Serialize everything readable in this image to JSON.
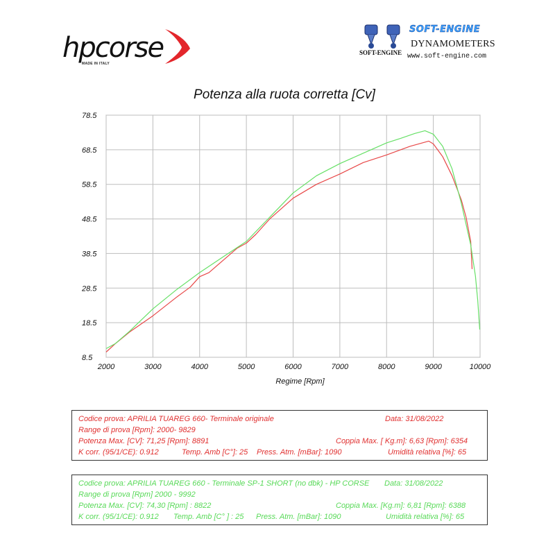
{
  "header": {
    "hpcorse_logo": "hpcorse",
    "hpcorse_made_in": "MADE IN ITALY",
    "softengine_title": "SOFT-ENGINE",
    "softengine_subtitle": "DYNAMOMETERS",
    "softengine_url": "www.soft-engine.com",
    "softengine_mini": "SOFT-ENGINE"
  },
  "chart_data": {
    "type": "line",
    "title": "Potenza alla ruota corretta [Cv]",
    "xlabel": "Regime [Rpm]",
    "ylabel": "",
    "xlim": [
      2000,
      10000
    ],
    "ylim": [
      8.5,
      78.5
    ],
    "xticks": [
      "2000",
      "3000",
      "4000",
      "5000",
      "6000",
      "7000",
      "8000",
      "9000",
      "10000"
    ],
    "yticks": [
      "8.5",
      "18.5",
      "28.5",
      "38.5",
      "48.5",
      "58.5",
      "68.5",
      "78.5"
    ],
    "grid": true,
    "series": [
      {
        "color": "#e84848",
        "x": [
          2000,
          2200,
          2500,
          3000,
          3500,
          3800,
          4000,
          4200,
          4500,
          4800,
          5000,
          5200,
          5500,
          6000,
          6500,
          7000,
          7500,
          8000,
          8500,
          8900,
          9000,
          9200,
          9400,
          9600,
          9700,
          9800,
          9829
        ],
        "y": [
          10.0,
          12.5,
          15.8,
          20.5,
          25.8,
          28.8,
          31.8,
          33.0,
          36.5,
          40.0,
          41.5,
          44.0,
          48.5,
          54.5,
          58.5,
          61.5,
          64.8,
          67.0,
          69.5,
          71.0,
          70.2,
          66.5,
          61.0,
          54.0,
          49.0,
          42.0,
          34.0
        ]
      },
      {
        "color": "#66e066",
        "x": [
          2000,
          2200,
          2500,
          3000,
          3500,
          4000,
          4500,
          5000,
          5500,
          6000,
          6500,
          7000,
          7500,
          8000,
          8300,
          8600,
          8822,
          9000,
          9200,
          9400,
          9600,
          9800,
          9900,
          9950,
          9992
        ],
        "y": [
          11.0,
          12.5,
          16.0,
          22.5,
          28.0,
          33.0,
          37.5,
          42.0,
          49.0,
          56.0,
          61.0,
          64.5,
          67.5,
          70.5,
          71.8,
          73.2,
          74.0,
          73.0,
          69.5,
          63.0,
          53.0,
          41.0,
          32.0,
          25.0,
          16.5
        ]
      }
    ]
  },
  "box_red": {
    "codice": "Codice prova: APRILIA TUAREG 660- Terminale originale",
    "data": "Data: 31/08/2022",
    "range": "Range di prova  [Rpm]: 2000- 9829",
    "potenza": "Potenza Max. [CV]:  71,25 [Rpm]: 8891",
    "coppia": "Coppia Max. [ Kg.m]:  6,63 [Rpm]: 6354",
    "kcorr": "K corr. (95/1/CE): 0.912",
    "temp": "Temp. Amb [C°]: 25",
    "press": "Press. Atm. [mBar]: 1090",
    "umid": "Umidità relativa [%]: 65"
  },
  "box_green": {
    "codice": "Codice prova: APRILIA TUAREG 660 - Terminale SP-1 SHORT  (no dbk) - HP CORSE",
    "data": "Data: 31/08/2022",
    "range": "Range di prova [Rpm] 2000 - 9992",
    "potenza": "Potenza Max. [CV]:  74,30  [Rpm] : 8822",
    "coppia": "Coppia Max. [Kg.m]:  6,81 [Rpm]: 6388",
    "kcorr": "K corr. (95/1/CE): 0.912",
    "temp": "Temp. Amb [C° ] : 25",
    "press": "Press. Atm. [mBar]: 1090",
    "umid": "Umidità relativa [%]: 65"
  },
  "colors": {
    "red_series": "#e84848",
    "green_series": "#66e066",
    "grid": "#bdbdbd",
    "brand_red": "#e3262b"
  }
}
